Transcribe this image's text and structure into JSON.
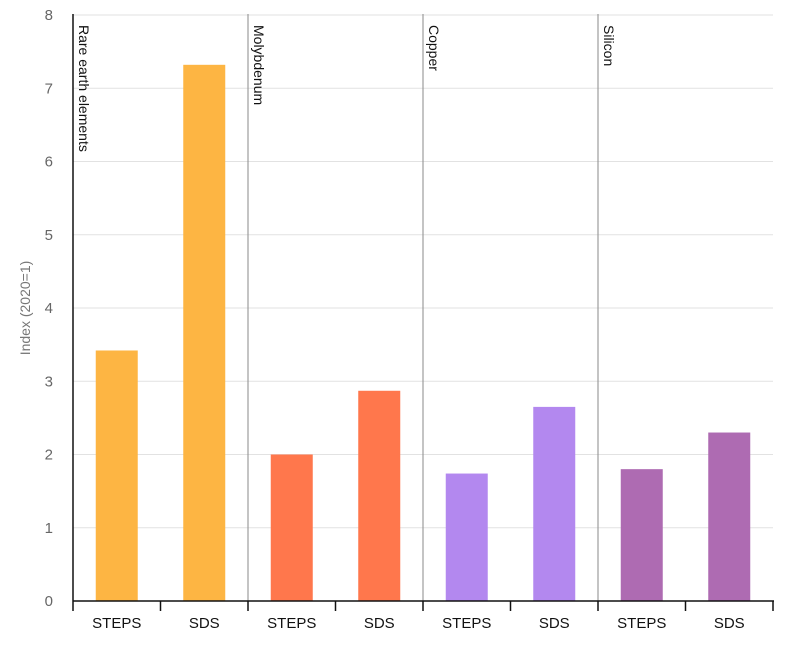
{
  "chart_data": {
    "type": "bar",
    "ylabel": "Index (2020=1)",
    "ylim": [
      0,
      8
    ],
    "yticks": [
      0,
      1,
      2,
      3,
      4,
      5,
      6,
      7,
      8
    ],
    "gridlines": true,
    "groups": [
      {
        "name": "Rare earth elements",
        "color": "#FDB543",
        "bars": [
          {
            "scenario": "STEPS",
            "value": 3.42
          },
          {
            "scenario": "SDS",
            "value": 7.32
          }
        ]
      },
      {
        "name": "Molybdenum",
        "color": "#FF774C",
        "bars": [
          {
            "scenario": "STEPS",
            "value": 2.0
          },
          {
            "scenario": "SDS",
            "value": 2.87
          }
        ]
      },
      {
        "name": "Copper",
        "color": "#B388EF",
        "bars": [
          {
            "scenario": "STEPS",
            "value": 1.74
          },
          {
            "scenario": "SDS",
            "value": 2.65
          }
        ]
      },
      {
        "name": "Silicon",
        "color": "#AE6BB2",
        "bars": [
          {
            "scenario": "STEPS",
            "value": 1.8
          },
          {
            "scenario": "SDS",
            "value": 2.3
          }
        ]
      }
    ]
  }
}
